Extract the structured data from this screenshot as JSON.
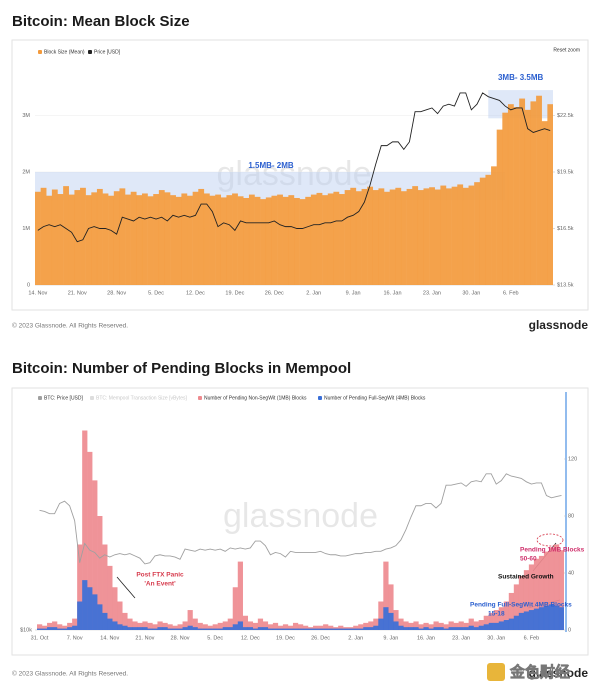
{
  "chart_data": [
    {
      "type": "combo",
      "title": "Bitcoin: Mean Block Size",
      "reset_zoom": "Reset zoom",
      "footer": "© 2023 Glassnode. All Rights Reserved.",
      "brand": "glassnode",
      "watermark": "glassnode",
      "categories": [
        "14. Nov",
        null,
        null,
        null,
        null,
        null,
        null,
        "21. Nov",
        null,
        null,
        null,
        null,
        null,
        null,
        "28. Nov",
        null,
        null,
        null,
        null,
        null,
        null,
        "5. Dec",
        null,
        null,
        null,
        null,
        null,
        null,
        "12. Dec",
        null,
        null,
        null,
        null,
        null,
        null,
        "19. Dec",
        null,
        null,
        null,
        null,
        null,
        null,
        "26. Dec",
        null,
        null,
        null,
        null,
        null,
        null,
        "2. Jan",
        null,
        null,
        null,
        null,
        null,
        null,
        "9. Jan",
        null,
        null,
        null,
        null,
        null,
        null,
        "16. Jan",
        null,
        null,
        null,
        null,
        null,
        null,
        "23. Jan",
        null,
        null,
        null,
        null,
        null,
        null,
        "30. Jan",
        null,
        null,
        null,
        null,
        null,
        null,
        "6. Feb",
        null,
        null,
        null,
        null,
        null,
        null,
        null
      ],
      "series": [
        {
          "name": "Block Size (Mean)",
          "type": "bar",
          "color": "#f39a3c",
          "values": [
            1650000,
            1720000,
            1580000,
            1690000,
            1610000,
            1750000,
            1600000,
            1680000,
            1720000,
            1590000,
            1640000,
            1700000,
            1620000,
            1580000,
            1660000,
            1710000,
            1600000,
            1650000,
            1590000,
            1620000,
            1570000,
            1610000,
            1680000,
            1640000,
            1590000,
            1560000,
            1620000,
            1580000,
            1650000,
            1700000,
            1620000,
            1580000,
            1600000,
            1550000,
            1590000,
            1620000,
            1570000,
            1540000,
            1600000,
            1560000,
            1520000,
            1550000,
            1580000,
            1600000,
            1560000,
            1590000,
            1540000,
            1520000,
            1560000,
            1600000,
            1630000,
            1590000,
            1620000,
            1650000,
            1610000,
            1680000,
            1720000,
            1660000,
            1700000,
            1740000,
            1680000,
            1710000,
            1650000,
            1690000,
            1720000,
            1660000,
            1700000,
            1750000,
            1680000,
            1710000,
            1730000,
            1690000,
            1760000,
            1710000,
            1740000,
            1780000,
            1720000,
            1760000,
            1820000,
            1900000,
            1950000,
            2100000,
            2750000,
            3050000,
            3200000,
            3150000,
            3300000,
            3100000,
            3250000,
            3350000,
            2900000,
            3200000
          ]
        },
        {
          "name": "Price [USD]",
          "type": "line",
          "axis": "y2",
          "color": "#222222",
          "values": [
            16400,
            16600,
            16700,
            16600,
            16700,
            16500,
            16300,
            15800,
            15900,
            16500,
            16600,
            16500,
            16500,
            16400,
            16200,
            17100,
            17000,
            16900,
            17100,
            17000,
            17100,
            17000,
            17100,
            16900,
            17200,
            17100,
            17200,
            17100,
            17200,
            17800,
            17800,
            17400,
            16600,
            16800,
            16700,
            16400,
            16900,
            16800,
            16800,
            16800,
            16800,
            16800,
            16900,
            16700,
            16600,
            16600,
            16500,
            16500,
            16600,
            16700,
            16700,
            16800,
            16800,
            16900,
            16900,
            17100,
            17200,
            17400,
            17900,
            18800,
            19900,
            20900,
            20900,
            21100,
            21100,
            20700,
            21100,
            22700,
            22700,
            22800,
            22900,
            22600,
            23000,
            23100,
            23000,
            23700,
            23700,
            22800,
            23100,
            23700,
            23500,
            23400,
            23300,
            23000,
            22800,
            22900,
            22900,
            21800,
            21600,
            21700,
            21800,
            21700
          ]
        }
      ],
      "ylim": [
        0,
        4000000
      ],
      "yticks": [
        0,
        {
          "value": 1000000,
          "label": "1M"
        },
        {
          "value": 2000000,
          "label": "2M"
        },
        {
          "value": 3000000,
          "label": "3M"
        }
      ],
      "y2lim": [
        13500,
        25500
      ],
      "y2ticks": [
        {
          "value": 13500,
          "label": "$13.5k"
        },
        {
          "value": 16500,
          "label": "$16.5k"
        },
        {
          "value": 19500,
          "label": "$19.5k"
        },
        {
          "value": 22500,
          "label": "$22.5k"
        }
      ],
      "grid": true,
      "bands": [
        {
          "label": "1.5MB- 2MB",
          "from": 1500000,
          "to": 2000000
        },
        {
          "label": "3MB- 3.5MB",
          "from": 2950000,
          "to": 3450000
        }
      ]
    },
    {
      "type": "combo",
      "title": "Bitcoin: Number of Pending Blocks in Mempool",
      "footer": "© 2023 Glassnode. All Rights Reserved.",
      "brand": "glassnode",
      "watermark": "glassnode",
      "overlay_logo": "金色财经",
      "legend_disabled": "BTC: Mempool Transaction Size [vBytes]",
      "categories": [
        "31. Oct",
        null,
        null,
        null,
        null,
        null,
        null,
        "7. Nov",
        null,
        null,
        null,
        null,
        null,
        null,
        "14. Nov",
        null,
        null,
        null,
        null,
        null,
        null,
        "21. Nov",
        null,
        null,
        null,
        null,
        null,
        null,
        "28. Nov",
        null,
        null,
        null,
        null,
        null,
        null,
        "5. Dec",
        null,
        null,
        null,
        null,
        null,
        null,
        "12. Dec",
        null,
        null,
        null,
        null,
        null,
        null,
        "19. Dec",
        null,
        null,
        null,
        null,
        null,
        null,
        "26. Dec",
        null,
        null,
        null,
        null,
        null,
        null,
        "2. Jan",
        null,
        null,
        null,
        null,
        null,
        null,
        "9. Jan",
        null,
        null,
        null,
        null,
        null,
        null,
        "16. Jan",
        null,
        null,
        null,
        null,
        null,
        null,
        "23. Jan",
        null,
        null,
        null,
        null,
        null,
        null,
        "30. Jan",
        null,
        null,
        null,
        null,
        null,
        null,
        "6. Feb",
        null,
        null,
        null,
        null,
        null,
        null
      ],
      "series": [
        {
          "name": "BTC: Price [USD]",
          "type": "line",
          "color": "#a0a0a0",
          "values": [
            20500,
            20400,
            20200,
            20200,
            21100,
            21300,
            20900,
            19600,
            15900,
            17600,
            17000,
            16800,
            16300,
            16600,
            16400,
            16600,
            16700,
            16600,
            16700,
            16500,
            16300,
            15800,
            15900,
            16500,
            16600,
            16500,
            16500,
            16400,
            16200,
            17100,
            17000,
            16900,
            17100,
            17000,
            17100,
            17000,
            17100,
            16900,
            17200,
            17100,
            17200,
            17100,
            17200,
            17800,
            17800,
            17400,
            16600,
            16800,
            16700,
            16400,
            16900,
            16800,
            16800,
            16800,
            16800,
            16800,
            16900,
            16700,
            16600,
            16600,
            16500,
            16500,
            16600,
            16700,
            16700,
            16800,
            16800,
            16900,
            16900,
            17100,
            17200,
            17400,
            17900,
            18800,
            19900,
            20900,
            20900,
            21100,
            21100,
            20700,
            21100,
            22700,
            22700,
            22800,
            22900,
            22600,
            23000,
            23100,
            23000,
            23700,
            23700,
            22800,
            23100,
            23700,
            23500,
            23400,
            23300,
            23000,
            22800,
            22900,
            22900,
            21800,
            21600,
            21700,
            21800
          ]
        },
        {
          "name": "Number of Pending Non-SegWit (1MB) Blocks",
          "type": "bar",
          "axis": "y2",
          "color": "#ee8a8f",
          "values": [
            4,
            3,
            5,
            6,
            4,
            3,
            5,
            8,
            60,
            140,
            125,
            105,
            80,
            60,
            45,
            30,
            20,
            12,
            8,
            6,
            5,
            6,
            5,
            4,
            6,
            5,
            4,
            3,
            4,
            6,
            14,
            8,
            5,
            4,
            3,
            4,
            5,
            6,
            8,
            30,
            48,
            10,
            6,
            5,
            8,
            6,
            4,
            5,
            3,
            4,
            3,
            5,
            4,
            3,
            2,
            3,
            3,
            4,
            3,
            2,
            3,
            2,
            2,
            3,
            4,
            5,
            6,
            8,
            20,
            48,
            32,
            14,
            8,
            6,
            5,
            6,
            4,
            5,
            4,
            6,
            5,
            4,
            6,
            5,
            6,
            5,
            8,
            6,
            7,
            10,
            12,
            14,
            16,
            20,
            26,
            32,
            38,
            42,
            46,
            50,
            52,
            55,
            58,
            60,
            56
          ]
        },
        {
          "name": "Number of Pending Full-SegWit (4MB) Blocks",
          "type": "bar",
          "axis": "y2",
          "color": "#3a6fd8",
          "values": [
            1,
            1,
            2,
            2,
            1,
            1,
            2,
            3,
            20,
            35,
            30,
            25,
            18,
            12,
            8,
            6,
            4,
            3,
            2,
            2,
            2,
            2,
            1,
            1,
            2,
            2,
            1,
            1,
            1,
            2,
            3,
            2,
            1,
            1,
            1,
            1,
            1,
            2,
            2,
            4,
            6,
            2,
            2,
            1,
            2,
            2,
            1,
            1,
            1,
            1,
            1,
            1,
            1,
            1,
            1,
            1,
            1,
            1,
            1,
            1,
            1,
            1,
            1,
            1,
            1,
            2,
            2,
            3,
            8,
            16,
            12,
            6,
            3,
            2,
            2,
            2,
            1,
            2,
            1,
            2,
            2,
            1,
            2,
            2,
            2,
            2,
            3,
            2,
            3,
            4,
            5,
            5,
            6,
            7,
            8,
            10,
            12,
            13,
            14,
            15,
            16,
            17,
            18,
            17,
            16
          ]
        }
      ],
      "ylim": [
        10000,
        30000
      ],
      "yticks": [
        {
          "value": 10000,
          "label": "$10k"
        }
      ],
      "y2lim": [
        0,
        160
      ],
      "y2ticks": [
        0,
        40,
        80,
        120
      ],
      "grid": false,
      "annotations": [
        {
          "lines": [
            "Post FTX Panic",
            "'An Event'"
          ],
          "color": "#d6394b"
        },
        {
          "lines": [
            "Sustained Growth"
          ],
          "color": "#111111"
        },
        {
          "lines": [
            "Pending 1MB Blocks",
            "50-60"
          ],
          "color": "#cf2f6b"
        },
        {
          "lines": [
            "Pending Full-SegWit 4MB Blocks",
            "15-18"
          ],
          "color": "#2b5fcf"
        }
      ]
    }
  ]
}
